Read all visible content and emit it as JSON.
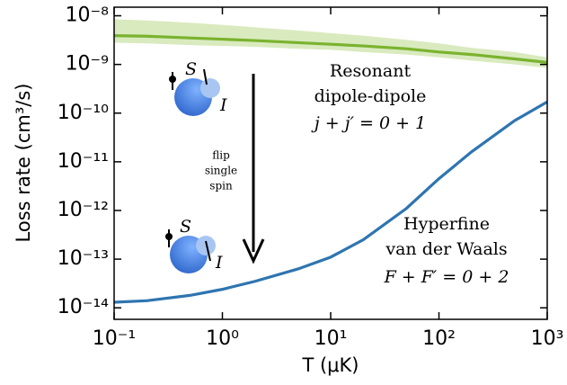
{
  "chart_data": {
    "type": "line",
    "xlabel": "T (μK)",
    "ylabel": "Loss rate (cm³/s)",
    "xscale": "log",
    "yscale": "log",
    "xlim": [
      0.1,
      1000
    ],
    "ylim": [
      5.8e-15,
      1.5e-08
    ],
    "xticks": [
      {
        "value": 0.1,
        "label": "10⁻¹"
      },
      {
        "value": 1,
        "label": "10⁰"
      },
      {
        "value": 10,
        "label": "10¹"
      },
      {
        "value": 100,
        "label": "10²"
      },
      {
        "value": 1000,
        "label": "10³"
      }
    ],
    "yticks": [
      {
        "value": 1e-08,
        "label": "10⁻⁸"
      },
      {
        "value": 1e-09,
        "label": "10⁻⁹"
      },
      {
        "value": 1e-10,
        "label": "10⁻¹⁰"
      },
      {
        "value": 1e-11,
        "label": "10⁻¹¹"
      },
      {
        "value": 1e-12,
        "label": "10⁻¹²"
      },
      {
        "value": 1e-13,
        "label": "10⁻¹³"
      },
      {
        "value": 1e-14,
        "label": "10⁻¹⁴"
      }
    ],
    "x": [
      0.1,
      0.2,
      0.5,
      1,
      2,
      5,
      10,
      20,
      50,
      100,
      200,
      500,
      1000
    ],
    "series": [
      {
        "color": "#7ab32e",
        "band_color": "#d9eabf",
        "values": [
          3.9e-09,
          3.8e-09,
          3.5e-09,
          3.3e-09,
          3.1e-09,
          2.8e-09,
          2.6e-09,
          2.4e-09,
          2.1e-09,
          1.8e-09,
          1.6e-09,
          1.3e-09,
          1.1e-09
        ],
        "band_upper": [
          8.5e-09,
          8e-09,
          7.2e-09,
          6.5e-09,
          5.8e-09,
          5e-09,
          4.4e-09,
          3.9e-09,
          3.2e-09,
          2.7e-09,
          2.2e-09,
          1.8e-09,
          1.4e-09
        ],
        "band_lower": [
          2.8e-09,
          2.7e-09,
          2.5e-09,
          2.4e-09,
          2.3e-09,
          2.1e-09,
          2e-09,
          1.8e-09,
          1.6e-09,
          1.4e-09,
          1.2e-09,
          1e-09,
          8.5e-10
        ]
      },
      {
        "color": "#2e75b0",
        "values": [
          1.3e-14,
          1.4e-14,
          1.8e-14,
          2.4e-14,
          3.5e-14,
          6.3e-14,
          1.1e-13,
          2.5e-13,
          1.1e-12,
          4.5e-12,
          1.6e-11,
          7e-11,
          1.7e-10
        ]
      }
    ],
    "annotations": [
      "Resonant",
      "dipole-dipole",
      "j + j′ = 0 + 1",
      "flip",
      "single",
      "spin",
      "Hyperfine",
      "van der Waals",
      "F + F′ = 0 + 2",
      "S",
      "I",
      "S",
      "I"
    ]
  }
}
